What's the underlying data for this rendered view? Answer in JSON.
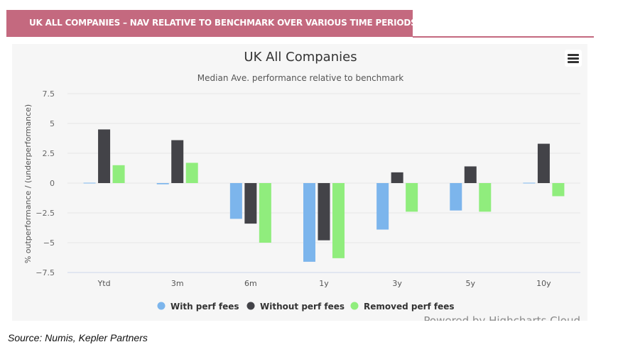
{
  "header": {
    "title": "UK ALL COMPANIES – NAV RELATIVE TO BENCHMARK OVER VARIOUS TIME PERIODS"
  },
  "source": "Source: Numis, Kepler Partners",
  "menu_icon": "hamburger-menu-icon",
  "credits": "Powered by Highcharts Cloud",
  "chart_data": {
    "type": "bar",
    "title": "UK All Companies",
    "subtitle": "Median Ave. performance relative to benchmark",
    "xlabel": "",
    "ylabel": "% outperformance / (underperformance)",
    "ylim": [
      -7.5,
      7.5
    ],
    "yticks": [
      7.5,
      5,
      2.5,
      0,
      -2.5,
      -5,
      -7.5
    ],
    "ytick_labels": [
      "7.5",
      "5",
      "2.5",
      "0",
      "−2.5",
      "−5",
      "−7.5"
    ],
    "grid": true,
    "legend_position": "bottom",
    "categories": [
      "Ytd",
      "3m",
      "6m",
      "1y",
      "3y",
      "5y",
      "10y"
    ],
    "series": [
      {
        "name": "With perf fees",
        "color": "#7cb5ec",
        "values": [
          0,
          -0.1,
          -3.0,
          -6.6,
          -3.9,
          -2.3,
          0
        ]
      },
      {
        "name": "Without perf fees",
        "color": "#434348",
        "values": [
          4.5,
          3.6,
          -3.4,
          -4.8,
          0.9,
          1.4,
          3.3
        ]
      },
      {
        "name": "Removed perf fees",
        "color": "#90ed7d",
        "values": [
          1.5,
          1.7,
          -5.0,
          -6.3,
          -2.4,
          -2.4,
          -1.1
        ]
      }
    ]
  }
}
